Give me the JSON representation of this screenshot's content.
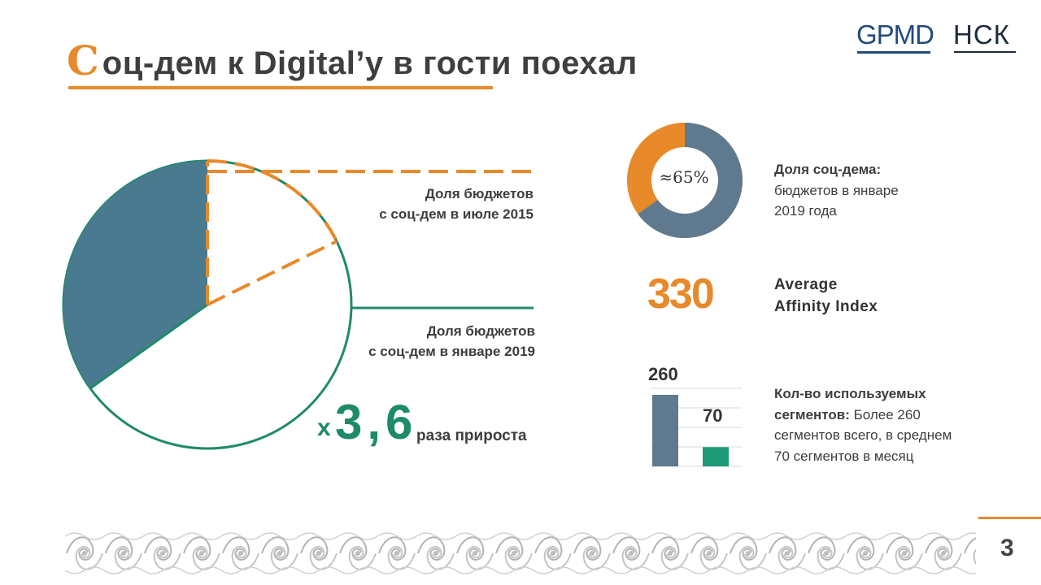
{
  "header": {
    "title_initial": "С",
    "title_rest": "оц-дем к Digital’у в гости поехал"
  },
  "logos": {
    "gpmd": "GPMD",
    "nck": "НСК"
  },
  "pie": {
    "label_2015_line1": "Доля бюджетов",
    "label_2015_line2": "с соц-дем в июле 2015",
    "label_2019_line1": "Доля бюджетов",
    "label_2019_line2": "с соц-дем в январе 2019",
    "growth_prefix": "x",
    "growth_value": "3,6",
    "growth_label": "раза прироста",
    "colors": {
      "teal_dark": "#4a7a8f",
      "green": "#1f8a6b",
      "orange": "#e8892a"
    }
  },
  "donut": {
    "center_label": "≈65%",
    "share_fraction": 0.65,
    "title": "Доля соц-дема:",
    "desc_line1": "бюджетов в январе",
    "desc_line2": "2019 года",
    "colors": {
      "main": "#5f7a8f",
      "rest": "#e8892a"
    }
  },
  "affinity": {
    "value": "330",
    "label_line1": "Average",
    "label_line2": "Affinity Index"
  },
  "segments": {
    "chart_data": {
      "type": "bar",
      "categories": [
        "",
        ""
      ],
      "values": [
        260,
        70
      ],
      "value_labels": [
        "260",
        "70"
      ],
      "colors": [
        "#5f7a8f",
        "#1f9a78"
      ]
    },
    "title_line1": "Кол-во используемых",
    "title_line2": "сегментов:",
    "desc_inline": "Более 260",
    "desc_line2": "сегментов всего, в среднем",
    "desc_line3": "70 сегментов в месяц"
  },
  "footer": {
    "page_number": "3"
  }
}
